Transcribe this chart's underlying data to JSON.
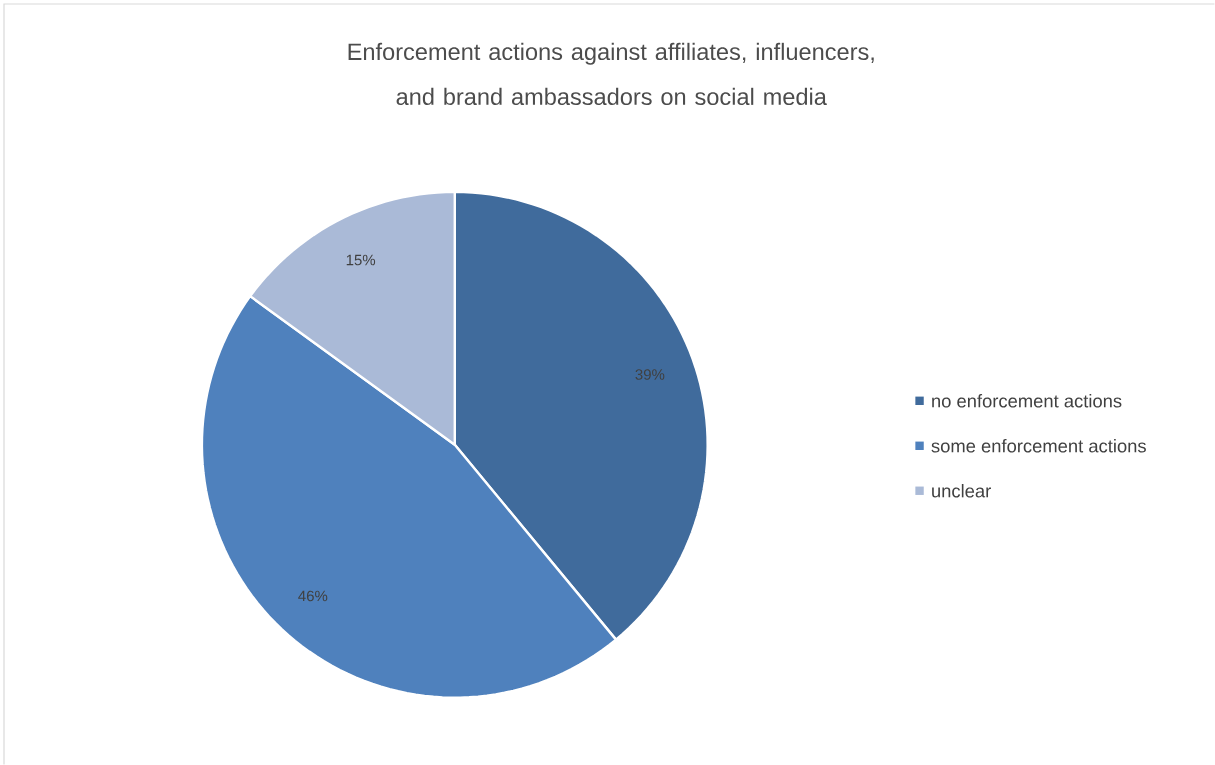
{
  "chart_data": {
    "type": "pie",
    "title": "Enforcement actions against affiliates, influencers, and brand ambassadors on social media",
    "categories": [
      "no enforcement actions",
      "some enforcement actions",
      "unclear"
    ],
    "values": [
      39,
      46,
      15
    ],
    "value_labels": [
      "39%",
      "46%",
      "15%"
    ],
    "colors": [
      "#406b9c",
      "#4f81bd",
      "#aabad7"
    ],
    "legend": "right"
  }
}
